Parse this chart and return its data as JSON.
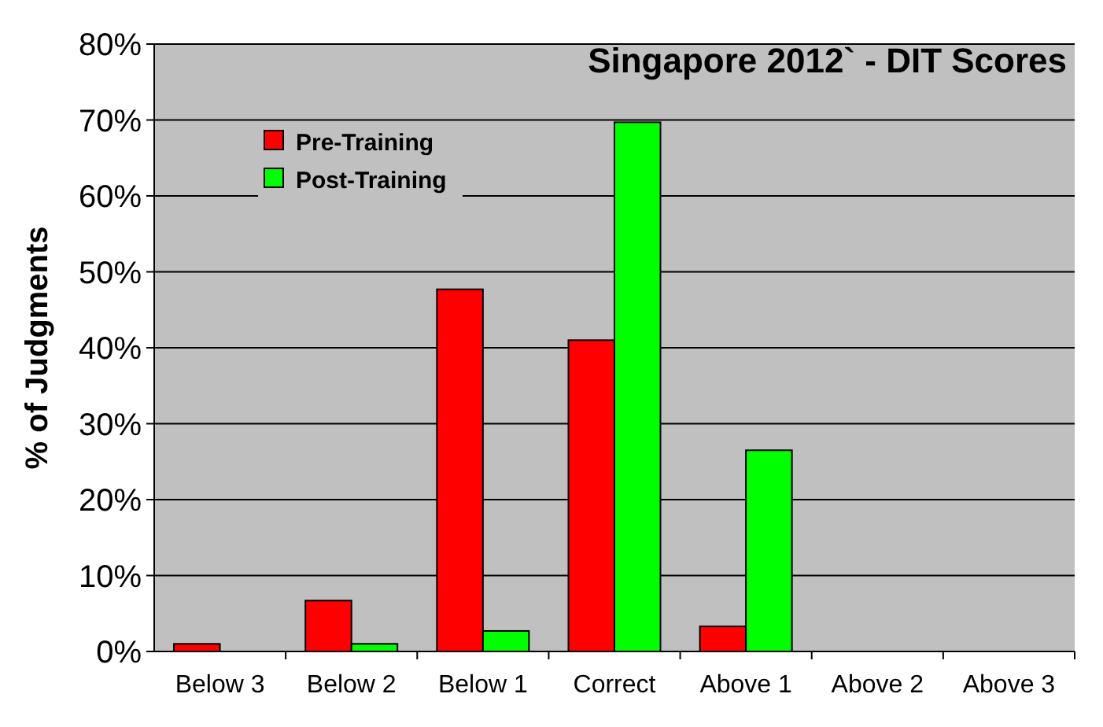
{
  "chart_data": {
    "type": "bar",
    "title": "Singapore 2012` - DIT Scores",
    "ylabel": "% of Judgments",
    "categories": [
      "Below 3",
      "Below 2",
      "Below 1",
      "Correct",
      "Above 1",
      "Above 2",
      "Above 3"
    ],
    "series": [
      {
        "name": "Pre-Training",
        "color": "#ff0000",
        "values": [
          1,
          6.7,
          47.7,
          41,
          3.3,
          0,
          0
        ]
      },
      {
        "name": "Post-Training",
        "color": "#00ff00",
        "values": [
          0,
          1,
          2.7,
          69.7,
          26.5,
          0,
          0
        ]
      }
    ],
    "ylim": [
      0,
      80
    ],
    "yticks": [
      {
        "value": 0,
        "label": "0%"
      },
      {
        "value": 10,
        "label": "10%"
      },
      {
        "value": 20,
        "label": "20%"
      },
      {
        "value": 30,
        "label": "30%"
      },
      {
        "value": 40,
        "label": "40%"
      },
      {
        "value": 50,
        "label": "50%"
      },
      {
        "value": 60,
        "label": "60%"
      },
      {
        "value": 70,
        "label": "70%"
      },
      {
        "value": 80,
        "label": "80%"
      }
    ],
    "grid": "y",
    "legend": "top left"
  }
}
